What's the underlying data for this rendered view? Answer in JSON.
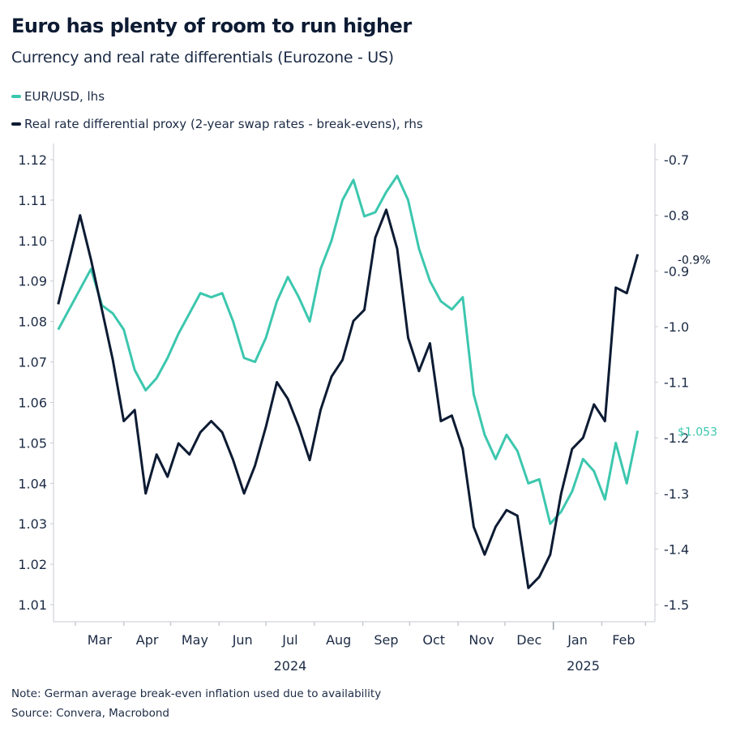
{
  "chart_data": {
    "type": "line",
    "title": "Euro has plenty of room to run higher",
    "subtitle": "Currency and real rate differentials (Eurozone - US)",
    "legend_placement": "top-left",
    "grid": false,
    "x": [
      "2024-02-19",
      "2024-02-26",
      "2024-03-04",
      "2024-03-11",
      "2024-03-18",
      "2024-03-25",
      "2024-04-01",
      "2024-04-08",
      "2024-04-15",
      "2024-04-22",
      "2024-04-29",
      "2024-05-06",
      "2024-05-13",
      "2024-05-20",
      "2024-05-27",
      "2024-06-03",
      "2024-06-10",
      "2024-06-17",
      "2024-06-24",
      "2024-07-01",
      "2024-07-08",
      "2024-07-15",
      "2024-07-22",
      "2024-07-29",
      "2024-08-05",
      "2024-08-12",
      "2024-08-19",
      "2024-08-26",
      "2024-09-02",
      "2024-09-09",
      "2024-09-16",
      "2024-09-23",
      "2024-09-30",
      "2024-10-07",
      "2024-10-14",
      "2024-10-21",
      "2024-10-28",
      "2024-11-04",
      "2024-11-11",
      "2024-11-18",
      "2024-11-25",
      "2024-12-02",
      "2024-12-09",
      "2024-12-16",
      "2024-12-23",
      "2024-12-30",
      "2025-01-06",
      "2025-01-13",
      "2025-01-20",
      "2025-01-27",
      "2025-02-03",
      "2025-02-10",
      "2025-02-17",
      "2025-02-24"
    ],
    "series": [
      {
        "name": "EUR/USD, lhs",
        "axis": "left",
        "color": "#3cc7ae",
        "values": [
          1.078,
          1.083,
          1.088,
          1.093,
          1.084,
          1.082,
          1.078,
          1.068,
          1.063,
          1.066,
          1.071,
          1.077,
          1.082,
          1.087,
          1.086,
          1.087,
          1.08,
          1.071,
          1.07,
          1.076,
          1.085,
          1.091,
          1.086,
          1.08,
          1.093,
          1.1,
          1.11,
          1.115,
          1.106,
          1.107,
          1.112,
          1.116,
          1.11,
          1.098,
          1.09,
          1.085,
          1.083,
          1.086,
          1.062,
          1.052,
          1.046,
          1.052,
          1.048,
          1.04,
          1.041,
          1.03,
          1.033,
          1.038,
          1.046,
          1.043,
          1.036,
          1.05,
          1.04,
          1.053
        ],
        "end_label": "$1.053"
      },
      {
        "name": "Real rate differential proxy (2-year swap rates - break-evens), rhs",
        "axis": "right",
        "color": "#0d1b33",
        "values": [
          -0.96,
          -0.88,
          -0.8,
          -0.88,
          -0.97,
          -1.06,
          -1.17,
          -1.15,
          -1.3,
          -1.23,
          -1.27,
          -1.21,
          -1.23,
          -1.19,
          -1.17,
          -1.19,
          -1.24,
          -1.3,
          -1.25,
          -1.18,
          -1.1,
          -1.13,
          -1.18,
          -1.24,
          -1.15,
          -1.09,
          -1.06,
          -0.99,
          -0.97,
          -0.84,
          -0.79,
          -0.86,
          -1.02,
          -1.08,
          -1.03,
          -1.17,
          -1.16,
          -1.22,
          -1.36,
          -1.41,
          -1.36,
          -1.33,
          -1.34,
          -1.47,
          -1.45,
          -1.41,
          -1.3,
          -1.22,
          -1.2,
          -1.14,
          -1.17,
          -0.93,
          -0.94,
          -0.87
        ],
        "end_label": "-0.9%"
      }
    ],
    "left_axis": {
      "ylim": [
        1.01,
        1.12
      ],
      "ticks": [
        "1.01",
        "1.02",
        "1.03",
        "1.04",
        "1.05",
        "1.06",
        "1.07",
        "1.08",
        "1.09",
        "1.10",
        "1.11",
        "1.12"
      ]
    },
    "right_axis": {
      "ylim": [
        -1.5,
        -0.7
      ],
      "ticks": [
        "-1.5",
        "-1.4",
        "-1.3",
        "-1.2",
        "-1.1",
        "-1.0",
        "-0.9",
        "-0.8",
        "-0.7"
      ]
    },
    "x_axis": {
      "month_labels": [
        "Mar",
        "Apr",
        "May",
        "Jun",
        "Jul",
        "Aug",
        "Sep",
        "Oct",
        "Nov",
        "Dec",
        "Jan",
        "Feb"
      ],
      "year_labels": [
        "2024",
        "2025"
      ]
    }
  },
  "footer": {
    "note": "Note: German average break-even inflation used due to availability",
    "source": "Source: Convera, Macrobond"
  }
}
